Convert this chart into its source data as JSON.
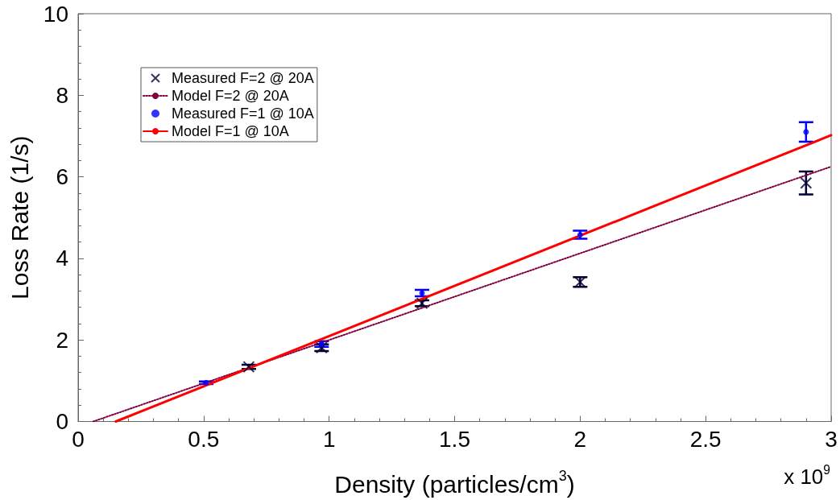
{
  "chart_data": {
    "type": "scatter",
    "xlabel": "Density (particles/cm$^{3}$)",
    "ylabel": "Loss Rate (1/s)",
    "annotations": [
      "x 10$^{9}$"
    ],
    "xlim": [
      0,
      3
    ],
    "xticks": [
      0,
      0.5,
      1,
      1.5,
      2,
      2.5,
      3
    ],
    "ylim": [
      0,
      10
    ],
    "yticks": [
      0,
      2,
      4,
      6,
      8,
      10
    ],
    "grid": false,
    "legend": "top left",
    "series": [
      {
        "name": "Measured F=2 @ 20A",
        "marker": "cross",
        "color": "#000033",
        "x": [
          0.68,
          0.97,
          1.37,
          2.0,
          2.9
        ],
        "values": [
          1.34,
          1.81,
          2.9,
          3.42,
          5.85
        ],
        "errors": [
          0.05,
          0.08,
          0.07,
          0.12,
          0.28
        ]
      },
      {
        "name": "Model F=2 @ 20A",
        "type": "line",
        "marker": "none",
        "line_style": "dotted",
        "color": "#800040",
        "x": [
          0.06,
          3
        ],
        "values": [
          0,
          6.25
        ]
      },
      {
        "name": "Measured F=1 @ 10A",
        "marker": "circle",
        "color": "#0000ff",
        "x": [
          0.51,
          0.97,
          1.37,
          2.0,
          2.9
        ],
        "values": [
          0.95,
          1.9,
          3.15,
          4.58,
          7.1
        ],
        "errors": [
          0.03,
          0.07,
          0.08,
          0.1,
          0.24
        ]
      },
      {
        "name": "Model F=1 @ 10A",
        "type": "line",
        "marker": "none",
        "line_style": "solid",
        "color": "#ff0000",
        "x": [
          0.15,
          3
        ],
        "values": [
          0,
          7.02
        ]
      }
    ]
  }
}
